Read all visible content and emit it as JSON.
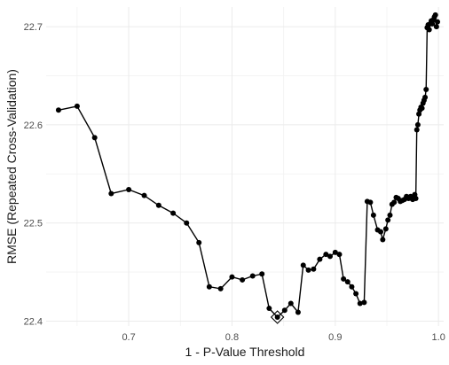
{
  "chart_data": {
    "type": "line",
    "title": "",
    "xlabel": "1 - P-Value Threshold",
    "ylabel": "RMSE (Repeated Cross-Validation)",
    "xlim": [
      0.62,
      1.005
    ],
    "ylim": [
      22.395,
      22.72
    ],
    "xticks": [
      0.7,
      0.8,
      0.9,
      1.0
    ],
    "xtick_labels": [
      "0.7",
      "0.8",
      "0.9",
      "1.0"
    ],
    "yticks": [
      22.4,
      22.5,
      22.6,
      22.7
    ],
    "ytick_labels": [
      "22.4",
      "22.5",
      "22.6",
      "22.7"
    ],
    "grid": true,
    "legend": false,
    "series": [
      {
        "x": [
          0.632,
          0.65,
          0.667,
          0.683,
          0.7,
          0.715,
          0.729,
          0.743,
          0.756,
          0.768,
          0.778,
          0.789,
          0.8,
          0.81,
          0.82,
          0.829,
          0.836,
          0.844,
          0.851,
          0.857,
          0.864,
          0.869,
          0.874,
          0.879,
          0.885,
          0.891,
          0.895,
          0.9,
          0.904,
          0.908,
          0.912,
          0.916,
          0.92,
          0.924,
          0.928,
          0.931,
          0.934,
          0.937,
          0.941,
          0.944,
          0.946,
          0.949,
          0.951,
          0.953,
          0.955,
          0.957,
          0.959,
          0.961,
          0.963,
          0.965,
          0.967,
          0.969,
          0.971,
          0.973,
          0.975,
          0.977,
          0.978,
          0.979,
          0.98,
          0.981,
          0.982,
          0.983,
          0.984,
          0.985,
          0.986,
          0.987,
          0.988,
          0.989,
          0.99,
          0.991,
          0.992,
          0.993,
          0.994,
          0.995,
          0.996,
          0.997,
          0.998,
          0.999
        ],
        "y": [
          22.615,
          22.619,
          22.587,
          22.53,
          22.534,
          22.528,
          22.518,
          22.51,
          22.5,
          22.48,
          22.435,
          22.433,
          22.445,
          22.442,
          22.446,
          22.448,
          22.413,
          22.404,
          22.411,
          22.418,
          22.409,
          22.457,
          22.452,
          22.453,
          22.463,
          22.468,
          22.466,
          22.47,
          22.468,
          22.443,
          22.44,
          22.435,
          22.428,
          22.418,
          22.419,
          22.522,
          22.521,
          22.508,
          22.493,
          22.491,
          22.483,
          22.494,
          22.503,
          22.508,
          22.519,
          22.521,
          22.526,
          22.525,
          22.522,
          22.523,
          22.524,
          22.527,
          22.525,
          22.527,
          22.524,
          22.529,
          22.525,
          22.595,
          22.6,
          22.611,
          22.615,
          22.618,
          22.617,
          22.622,
          22.625,
          22.628,
          22.636,
          22.699,
          22.702,
          22.697,
          22.703,
          22.706,
          22.703,
          22.707,
          22.71,
          22.712,
          22.7,
          22.705
        ]
      }
    ],
    "highlight": {
      "x": 0.844,
      "y": 22.404,
      "marker": "diamond"
    }
  }
}
